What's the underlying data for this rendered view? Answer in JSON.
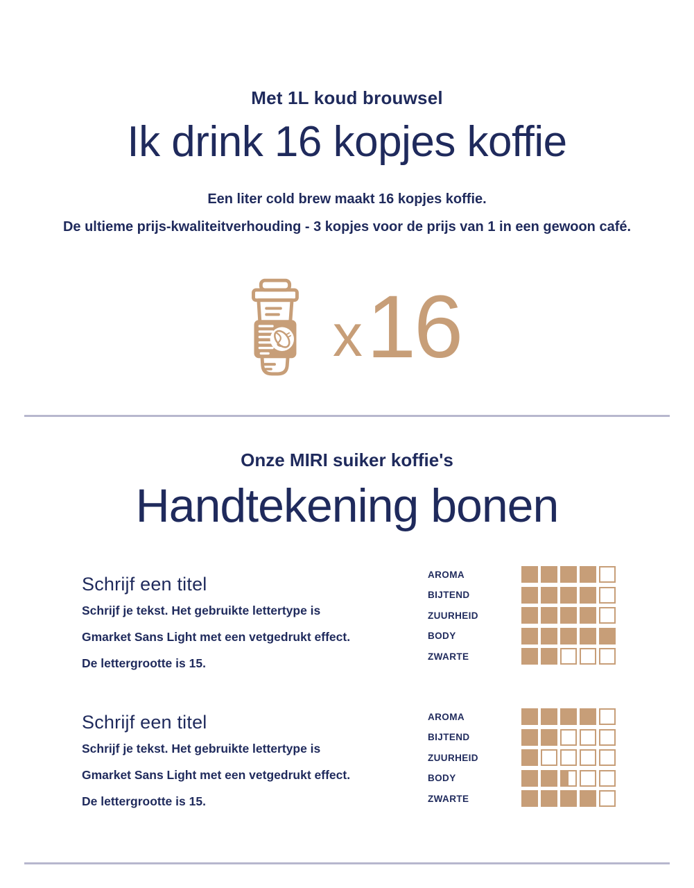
{
  "colors": {
    "navy": "#1f2a5c",
    "tan": "#c79e78",
    "divider": "#b7b7ce",
    "background": "#ffffff"
  },
  "hero": {
    "subtitle": "Met 1L koud brouwsel",
    "title": "Ik drink 16 kopjes koffie",
    "body_line_1": "Een liter cold brew maakt 16 kopjes koffie.",
    "body_line_2": "De ultieme prijs-kwaliteitverhouding - 3 kopjes voor de prijs van 1 in een gewoon café.",
    "multiplier_sign": "x",
    "multiplier_count": "16",
    "icon": "takeaway-coffee-cup"
  },
  "beans": {
    "subtitle": "Onze MIRI suiker koffie's",
    "title": "Handtekening bonen",
    "blocks": [
      {
        "heading": "Schrijf een titel",
        "lines": [
          "Schrijf je tekst. Het gebruikte lettertype is",
          "Gmarket Sans Light met een vetgedrukt effect.",
          "De lettergrootte is 15."
        ],
        "ratings": [
          {
            "label": "AROMA",
            "value": 4,
            "max": 5
          },
          {
            "label": "BIJTEND",
            "value": 4,
            "max": 5
          },
          {
            "label": "ZUURHEID",
            "value": 4,
            "max": 5
          },
          {
            "label": "BODY",
            "value": 5,
            "max": 5
          },
          {
            "label": "ZWARTE",
            "value": 2,
            "max": 5
          }
        ]
      },
      {
        "heading": "Schrijf een titel",
        "lines": [
          "Schrijf je tekst. Het gebruikte lettertype is",
          "Gmarket Sans Light met een vetgedrukt effect.",
          "De lettergrootte is 15."
        ],
        "ratings": [
          {
            "label": "AROMA",
            "value": 4,
            "max": 5
          },
          {
            "label": "BIJTEND",
            "value": 2,
            "max": 5
          },
          {
            "label": "ZUURHEID",
            "value": 1,
            "max": 5
          },
          {
            "label": "BODY",
            "value": 2.5,
            "max": 5
          },
          {
            "label": "ZWARTE",
            "value": 4,
            "max": 5
          }
        ]
      }
    ]
  }
}
